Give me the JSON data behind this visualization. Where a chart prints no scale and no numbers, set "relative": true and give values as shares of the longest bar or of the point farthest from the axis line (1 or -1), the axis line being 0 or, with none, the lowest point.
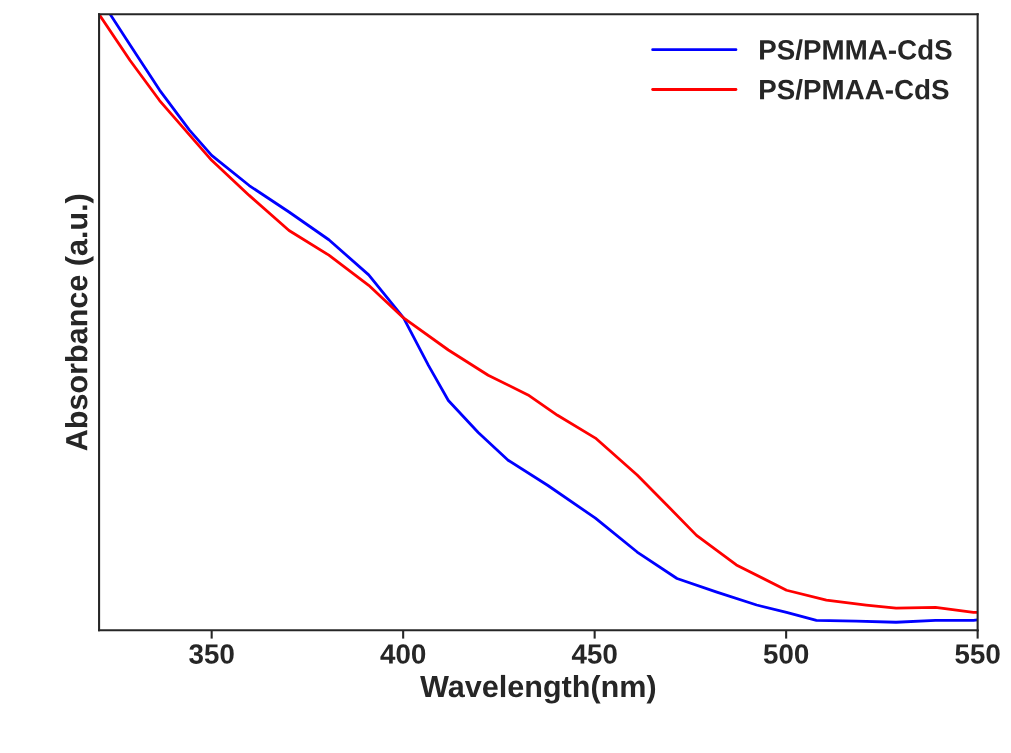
{
  "chart_data": {
    "type": "line",
    "relative": true,
    "xlabel": "Wavelength(nm)",
    "ylabel": "Absorbance (a.u.)",
    "xlim": [
      320.6,
      550
    ],
    "xticks": [
      350,
      400,
      450,
      500,
      550
    ],
    "grid": false,
    "legend": "top right",
    "line_style": "solid",
    "marker": "none",
    "tick_labels": "x",
    "series": [
      {
        "name": "PS/PMMA-CdS",
        "color": "#0000ff",
        "x": [
          323.5,
          328.7,
          336.4,
          344.2,
          350.0,
          359.8,
          370.2,
          380.6,
          391.0,
          400.1,
          406.6,
          411.8,
          419.6,
          427.4,
          437.8,
          450.2,
          461.1,
          471.5,
          481.9,
          492.3,
          500.1,
          507.9,
          518.3,
          528.7,
          539.0,
          548.9,
          550
        ],
        "values": [
          1.0,
          0.95,
          0.877,
          0.812,
          0.771,
          0.722,
          0.679,
          0.634,
          0.577,
          0.507,
          0.43,
          0.373,
          0.321,
          0.276,
          0.235,
          0.182,
          0.127,
          0.084,
          0.062,
          0.041,
          0.029,
          0.016,
          0.015,
          0.013,
          0.016,
          0.016,
          0.017
        ]
      },
      {
        "name": "PS/PMAA-CdS",
        "color": "#ff0000",
        "x": [
          320.6,
          328.7,
          336.4,
          350.0,
          359.8,
          370.2,
          380.6,
          391.0,
          400.1,
          411.8,
          422.2,
          432.6,
          440.3,
          450.2,
          461.1,
          468.9,
          476.6,
          487.0,
          500.1,
          510.5,
          520.9,
          528.7,
          539.0,
          548.9,
          550
        ],
        "values": [
          1.0,
          0.925,
          0.86,
          0.763,
          0.706,
          0.649,
          0.609,
          0.56,
          0.507,
          0.455,
          0.414,
          0.382,
          0.349,
          0.312,
          0.252,
          0.203,
          0.154,
          0.106,
          0.065,
          0.049,
          0.041,
          0.036,
          0.037,
          0.029,
          0.029
        ]
      }
    ]
  }
}
